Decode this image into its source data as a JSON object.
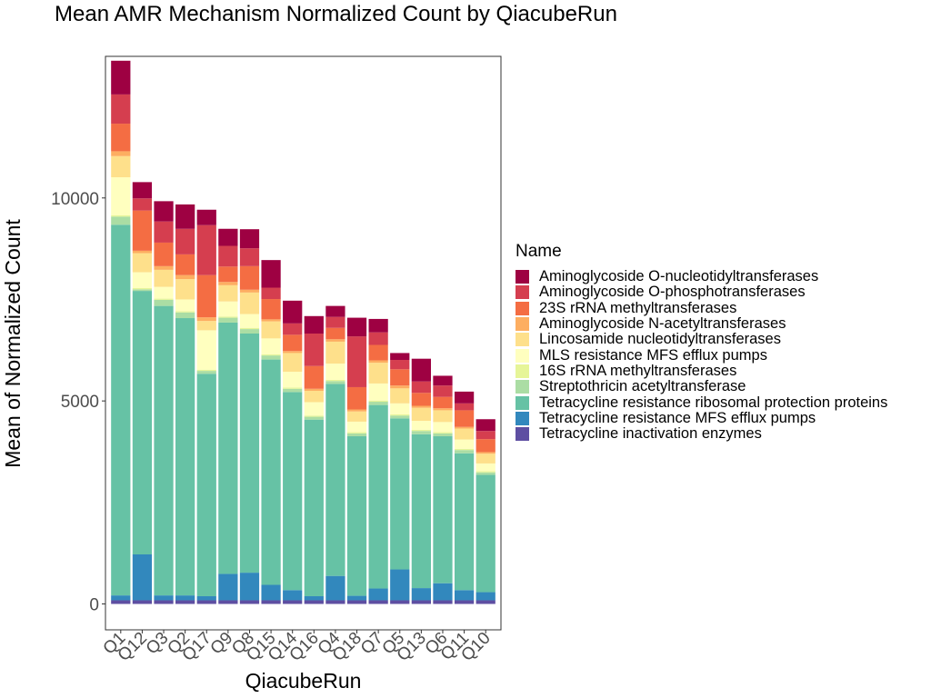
{
  "chart_data": {
    "type": "bar",
    "stacked": true,
    "title": "Mean AMR Mechanism Normalized Count by QiacubeRun",
    "xlabel": "QiacubeRun",
    "ylabel": "Mean of Normalized Count",
    "ylim": [
      -620,
      13500
    ],
    "yticks": [
      0,
      5000,
      10000
    ],
    "ytick_labels": [
      "0",
      "5000",
      "10000"
    ],
    "grid": false,
    "legend_position": "right",
    "legend_title": "Name",
    "categories": [
      "Q1",
      "Q12",
      "Q3",
      "Q2",
      "Q17",
      "Q9",
      "Q8",
      "Q15",
      "Q14",
      "Q16",
      "Q4",
      "Q18",
      "Q7",
      "Q5",
      "Q13",
      "Q6",
      "Q11",
      "Q10"
    ],
    "series": [
      {
        "name": "Tetracycline inactivation enzymes",
        "color": "#5E4FA2",
        "values": [
          90,
          90,
          90,
          90,
          90,
          90,
          90,
          90,
          90,
          90,
          90,
          90,
          90,
          90,
          90,
          90,
          90,
          90
        ]
      },
      {
        "name": "Tetracycline resistance MFS efflux pumps",
        "color": "#3288BD",
        "values": [
          120,
          1130,
          120,
          120,
          100,
          650,
          680,
          380,
          250,
          100,
          600,
          110,
          290,
          760,
          300,
          420,
          250,
          200
        ]
      },
      {
        "name": "Tetracycline resistance ribosomal protection proteins",
        "color": "#66C2A5",
        "values": [
          9130,
          6490,
          7130,
          6830,
          5480,
          6190,
          5890,
          5550,
          4880,
          4350,
          4730,
          3930,
          4520,
          3720,
          3790,
          3620,
          3370,
          2890
        ]
      },
      {
        "name": "Streptothricin acetyltransferase",
        "color": "#ABDDA4",
        "values": [
          200,
          40,
          150,
          140,
          70,
          120,
          110,
          100,
          80,
          70,
          70,
          70,
          80,
          70,
          80,
          70,
          80,
          60
        ]
      },
      {
        "name": "16S rRNA methyltransferases",
        "color": "#E6F598",
        "values": [
          30,
          30,
          30,
          30,
          30,
          30,
          30,
          30,
          30,
          30,
          30,
          30,
          30,
          30,
          30,
          30,
          30,
          30
        ]
      },
      {
        "name": "MLS resistance MFS efflux pumps",
        "color": "#FFFFBF",
        "values": [
          940,
          390,
          290,
          290,
          970,
          370,
          340,
          390,
          390,
          330,
          400,
          260,
          420,
          270,
          220,
          250,
          230,
          190
        ]
      },
      {
        "name": "Lincosamide nucleotidyltransferases",
        "color": "#FEE08B",
        "values": [
          520,
          470,
          420,
          500,
          230,
          400,
          530,
          420,
          460,
          280,
          540,
          250,
          510,
          370,
          320,
          290,
          270,
          240
        ]
      },
      {
        "name": "Aminoglycoside N-acetyltransferases",
        "color": "#FDAE61",
        "values": [
          120,
          60,
          90,
          100,
          90,
          80,
          70,
          50,
          50,
          50,
          60,
          50,
          60,
          70,
          50,
          50,
          40,
          40
        ]
      },
      {
        "name": "23S rRNA methyltransferases",
        "color": "#F46D43",
        "values": [
          680,
          990,
          580,
          510,
          1040,
          380,
          580,
          500,
          400,
          560,
          280,
          550,
          380,
          400,
          320,
          280,
          410,
          320
        ]
      },
      {
        "name": "Aminoglycoside O-phosphotransferases",
        "color": "#D53E4F",
        "values": [
          720,
          300,
          520,
          630,
          1230,
          510,
          440,
          280,
          280,
          800,
          270,
          1250,
          310,
          230,
          280,
          280,
          170,
          200
        ]
      },
      {
        "name": "Aminoglycoside O-nucleotidyltransferases",
        "color": "#9E0142",
        "values": [
          830,
          400,
          500,
          600,
          380,
          420,
          470,
          680,
          560,
          430,
          270,
          460,
          330,
          170,
          560,
          240,
          290,
          290
        ]
      }
    ]
  }
}
